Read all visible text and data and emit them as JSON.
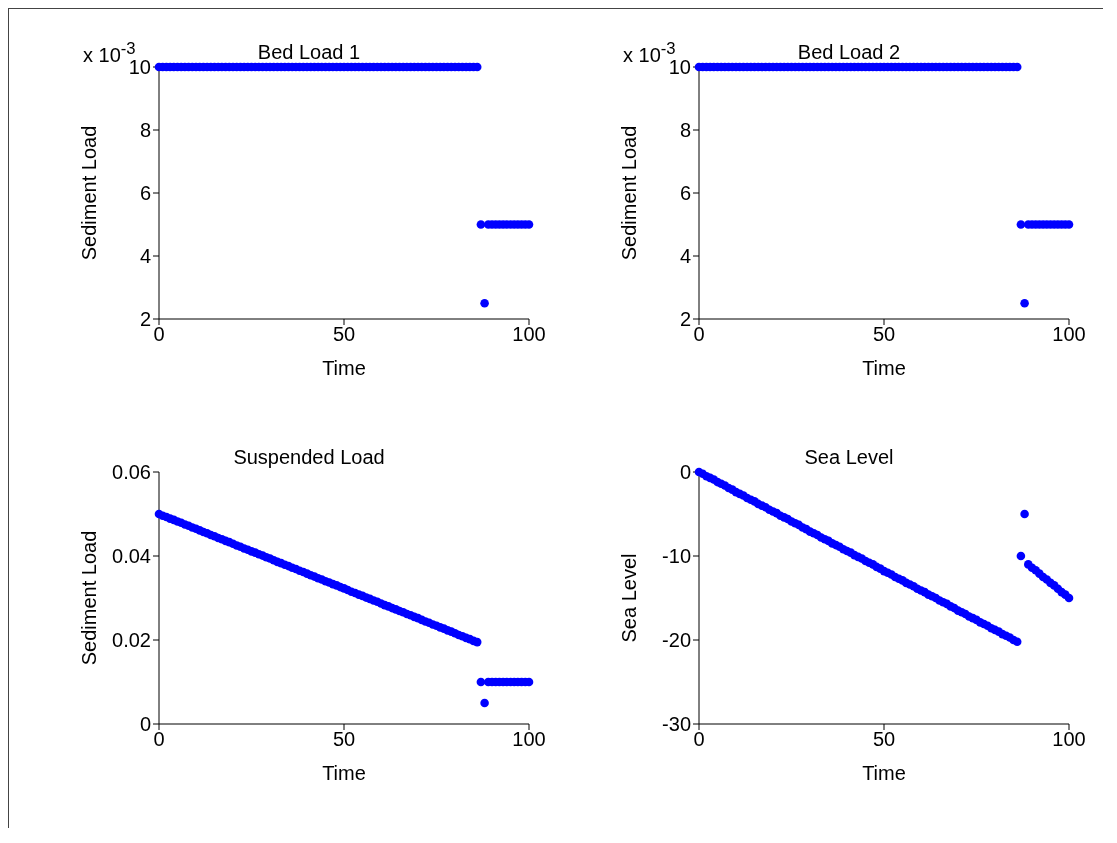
{
  "chart_data": [
    {
      "type": "scatter",
      "title": "Bed Load 1",
      "xlabel": "Time",
      "ylabel": "Sediment Load",
      "annotations": [
        "x 10$^{-3}$"
      ],
      "marker": "circle",
      "xlim": [
        0,
        100
      ],
      "xticks": [
        0,
        50,
        100
      ],
      "ylim": [
        2,
        10
      ],
      "yticks": [
        2,
        4,
        6,
        8,
        10
      ],
      "x": [
        0,
        1,
        2,
        3,
        4,
        5,
        6,
        7,
        8,
        9,
        10,
        11,
        12,
        13,
        14,
        15,
        16,
        17,
        18,
        19,
        20,
        21,
        22,
        23,
        24,
        25,
        26,
        27,
        28,
        29,
        30,
        31,
        32,
        33,
        34,
        35,
        36,
        37,
        38,
        39,
        40,
        41,
        42,
        43,
        44,
        45,
        46,
        47,
        48,
        49,
        50,
        51,
        52,
        53,
        54,
        55,
        56,
        57,
        58,
        59,
        60,
        61,
        62,
        63,
        64,
        65,
        66,
        67,
        68,
        69,
        70,
        71,
        72,
        73,
        74,
        75,
        76,
        77,
        78,
        79,
        80,
        81,
        82,
        83,
        84,
        85,
        86,
        87,
        88,
        89,
        90,
        91,
        92,
        93,
        94,
        95,
        96,
        97,
        98,
        99,
        100
      ],
      "series": [
        {
          "color": "#0000ff",
          "values": [
            10,
            10,
            10,
            10,
            10,
            10,
            10,
            10,
            10,
            10,
            10,
            10,
            10,
            10,
            10,
            10,
            10,
            10,
            10,
            10,
            10,
            10,
            10,
            10,
            10,
            10,
            10,
            10,
            10,
            10,
            10,
            10,
            10,
            10,
            10,
            10,
            10,
            10,
            10,
            10,
            10,
            10,
            10,
            10,
            10,
            10,
            10,
            10,
            10,
            10,
            10,
            10,
            10,
            10,
            10,
            10,
            10,
            10,
            10,
            10,
            10,
            10,
            10,
            10,
            10,
            10,
            10,
            10,
            10,
            10,
            10,
            10,
            10,
            10,
            10,
            10,
            10,
            10,
            10,
            10,
            10,
            10,
            10,
            10,
            10,
            10,
            10,
            5,
            2.5,
            5,
            5,
            5,
            5,
            5,
            5,
            5,
            5,
            5,
            5,
            5,
            5
          ]
        }
      ]
    },
    {
      "type": "scatter",
      "title": "Bed Load 2",
      "xlabel": "Time",
      "ylabel": "Sediment Load",
      "annotations": [
        "x 10$^{-3}$"
      ],
      "marker": "circle",
      "xlim": [
        0,
        100
      ],
      "xticks": [
        0,
        50,
        100
      ],
      "ylim": [
        2,
        10
      ],
      "yticks": [
        2,
        4,
        6,
        8,
        10
      ],
      "x": [
        0,
        1,
        2,
        3,
        4,
        5,
        6,
        7,
        8,
        9,
        10,
        11,
        12,
        13,
        14,
        15,
        16,
        17,
        18,
        19,
        20,
        21,
        22,
        23,
        24,
        25,
        26,
        27,
        28,
        29,
        30,
        31,
        32,
        33,
        34,
        35,
        36,
        37,
        38,
        39,
        40,
        41,
        42,
        43,
        44,
        45,
        46,
        47,
        48,
        49,
        50,
        51,
        52,
        53,
        54,
        55,
        56,
        57,
        58,
        59,
        60,
        61,
        62,
        63,
        64,
        65,
        66,
        67,
        68,
        69,
        70,
        71,
        72,
        73,
        74,
        75,
        76,
        77,
        78,
        79,
        80,
        81,
        82,
        83,
        84,
        85,
        86,
        87,
        88,
        89,
        90,
        91,
        92,
        93,
        94,
        95,
        96,
        97,
        98,
        99,
        100
      ],
      "series": [
        {
          "color": "#0000ff",
          "values": [
            10,
            10,
            10,
            10,
            10,
            10,
            10,
            10,
            10,
            10,
            10,
            10,
            10,
            10,
            10,
            10,
            10,
            10,
            10,
            10,
            10,
            10,
            10,
            10,
            10,
            10,
            10,
            10,
            10,
            10,
            10,
            10,
            10,
            10,
            10,
            10,
            10,
            10,
            10,
            10,
            10,
            10,
            10,
            10,
            10,
            10,
            10,
            10,
            10,
            10,
            10,
            10,
            10,
            10,
            10,
            10,
            10,
            10,
            10,
            10,
            10,
            10,
            10,
            10,
            10,
            10,
            10,
            10,
            10,
            10,
            10,
            10,
            10,
            10,
            10,
            10,
            10,
            10,
            10,
            10,
            10,
            10,
            10,
            10,
            10,
            10,
            10,
            5,
            2.5,
            5,
            5,
            5,
            5,
            5,
            5,
            5,
            5,
            5,
            5,
            5,
            5
          ]
        }
      ]
    },
    {
      "type": "scatter",
      "title": "Suspended Load",
      "xlabel": "Time",
      "ylabel": "Sediment Load",
      "marker": "circle",
      "xlim": [
        0,
        100
      ],
      "xticks": [
        0,
        50,
        100
      ],
      "ylim": [
        0,
        0.06
      ],
      "yticks": [
        0,
        0.02,
        0.04,
        0.06
      ],
      "x": [
        0,
        1,
        2,
        3,
        4,
        5,
        6,
        7,
        8,
        9,
        10,
        11,
        12,
        13,
        14,
        15,
        16,
        17,
        18,
        19,
        20,
        21,
        22,
        23,
        24,
        25,
        26,
        27,
        28,
        29,
        30,
        31,
        32,
        33,
        34,
        35,
        36,
        37,
        38,
        39,
        40,
        41,
        42,
        43,
        44,
        45,
        46,
        47,
        48,
        49,
        50,
        51,
        52,
        53,
        54,
        55,
        56,
        57,
        58,
        59,
        60,
        61,
        62,
        63,
        64,
        65,
        66,
        67,
        68,
        69,
        70,
        71,
        72,
        73,
        74,
        75,
        76,
        77,
        78,
        79,
        80,
        81,
        82,
        83,
        84,
        85,
        86,
        87,
        88,
        89,
        90,
        91,
        92,
        93,
        94,
        95,
        96,
        97,
        98,
        99,
        100
      ],
      "series": [
        {
          "color": "#0000ff",
          "values": [
            0.05,
            0.0496,
            0.0493,
            0.0489,
            0.0486,
            0.0482,
            0.0479,
            0.0475,
            0.0472,
            0.0468,
            0.0465,
            0.0461,
            0.0457,
            0.0454,
            0.045,
            0.0447,
            0.0443,
            0.044,
            0.0436,
            0.0433,
            0.0429,
            0.0425,
            0.0422,
            0.0418,
            0.0415,
            0.0411,
            0.0408,
            0.0404,
            0.0401,
            0.0397,
            0.0394,
            0.039,
            0.0386,
            0.0383,
            0.0379,
            0.0376,
            0.0372,
            0.0369,
            0.0365,
            0.0362,
            0.0358,
            0.0354,
            0.0351,
            0.0347,
            0.0344,
            0.034,
            0.0337,
            0.0333,
            0.033,
            0.0326,
            0.0323,
            0.0319,
            0.0315,
            0.0312,
            0.0308,
            0.0305,
            0.0301,
            0.0298,
            0.0294,
            0.0291,
            0.0287,
            0.0283,
            0.028,
            0.0276,
            0.0273,
            0.0269,
            0.0266,
            0.0262,
            0.0259,
            0.0255,
            0.0252,
            0.0248,
            0.0244,
            0.0241,
            0.0237,
            0.0234,
            0.023,
            0.0227,
            0.0223,
            0.022,
            0.0216,
            0.0212,
            0.0209,
            0.0205,
            0.0202,
            0.0198,
            0.0195,
            0.01,
            0.005,
            0.01,
            0.01,
            0.01,
            0.01,
            0.01,
            0.01,
            0.01,
            0.01,
            0.01,
            0.01,
            0.01,
            0.01
          ]
        }
      ]
    },
    {
      "type": "scatter",
      "title": "Sea Level",
      "xlabel": "Time",
      "ylabel": "Sea Level",
      "marker": "circle",
      "xlim": [
        0,
        100
      ],
      "xticks": [
        0,
        50,
        100
      ],
      "ylim": [
        -30,
        0
      ],
      "yticks": [
        -30,
        -20,
        -10,
        0
      ],
      "x": [
        0,
        1,
        2,
        3,
        4,
        5,
        6,
        7,
        8,
        9,
        10,
        11,
        12,
        13,
        14,
        15,
        16,
        17,
        18,
        19,
        20,
        21,
        22,
        23,
        24,
        25,
        26,
        27,
        28,
        29,
        30,
        31,
        32,
        33,
        34,
        35,
        36,
        37,
        38,
        39,
        40,
        41,
        42,
        43,
        44,
        45,
        46,
        47,
        48,
        49,
        50,
        51,
        52,
        53,
        54,
        55,
        56,
        57,
        58,
        59,
        60,
        61,
        62,
        63,
        64,
        65,
        66,
        67,
        68,
        69,
        70,
        71,
        72,
        73,
        74,
        75,
        76,
        77,
        78,
        79,
        80,
        81,
        82,
        83,
        84,
        85,
        86,
        87,
        88,
        89,
        90,
        91,
        92,
        93,
        94,
        95,
        96,
        97,
        98,
        99,
        100
      ],
      "series": [
        {
          "color": "#0000ff",
          "values": [
            0,
            -0.2,
            -0.5,
            -0.7,
            -0.9,
            -1.2,
            -1.4,
            -1.6,
            -1.9,
            -2.1,
            -2.4,
            -2.6,
            -2.8,
            -3.1,
            -3.3,
            -3.5,
            -3.8,
            -4,
            -4.2,
            -4.5,
            -4.7,
            -4.9,
            -5.2,
            -5.4,
            -5.6,
            -5.9,
            -6.1,
            -6.3,
            -6.6,
            -6.8,
            -7.1,
            -7.3,
            -7.5,
            -7.8,
            -8,
            -8.2,
            -8.5,
            -8.7,
            -8.9,
            -9.2,
            -9.4,
            -9.6,
            -9.9,
            -10.1,
            -10.3,
            -10.6,
            -10.8,
            -11,
            -11.3,
            -11.5,
            -11.8,
            -12,
            -12.2,
            -12.5,
            -12.7,
            -12.9,
            -13.2,
            -13.4,
            -13.6,
            -13.9,
            -14.1,
            -14.3,
            -14.6,
            -14.8,
            -15,
            -15.3,
            -15.5,
            -15.7,
            -16,
            -16.2,
            -16.5,
            -16.7,
            -16.9,
            -17.2,
            -17.4,
            -17.6,
            -17.9,
            -18.1,
            -18.3,
            -18.6,
            -18.8,
            -19,
            -19.3,
            -19.5,
            -19.7,
            -20,
            -20.2,
            -10,
            -5,
            -11,
            -11.4,
            -11.7,
            -12.1,
            -12.5,
            -12.8,
            -13.2,
            -13.5,
            -13.9,
            -14.3,
            -14.6,
            -15
          ]
        }
      ]
    }
  ]
}
